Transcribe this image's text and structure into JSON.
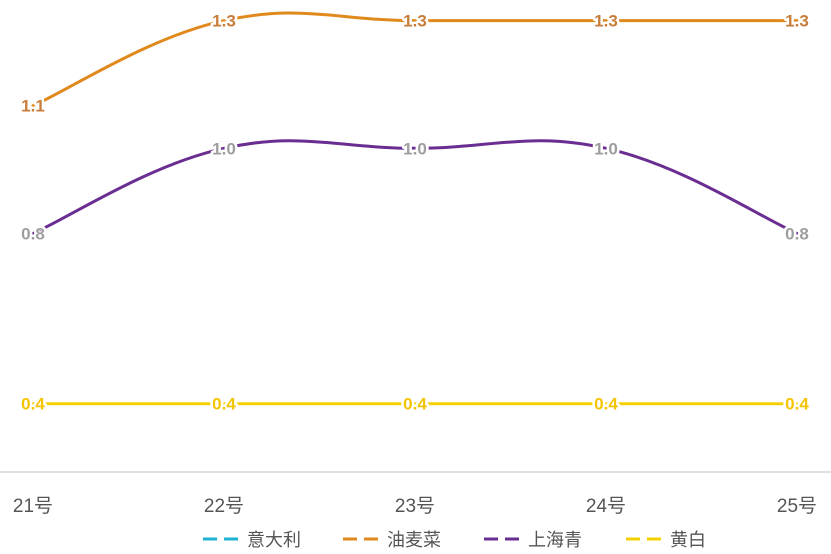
{
  "chart_data": {
    "type": "line",
    "title": "",
    "xlabel": "",
    "ylabel": "",
    "categories": [
      "21号",
      "22号",
      "23号",
      "24号",
      "25号"
    ],
    "ylim": [
      0,
      1.4
    ],
    "grid": false,
    "smooth": true,
    "legend_position": "bottom",
    "series": [
      {
        "name": "意大利",
        "color": "#1fb3d1",
        "values": [
          null,
          null,
          null,
          null,
          null
        ],
        "labels": [
          "",
          "",
          "",
          "",
          ""
        ]
      },
      {
        "name": "油麦菜",
        "color": "#e08a1e",
        "label_color": "#c87d3a",
        "values": [
          1.1,
          1.3,
          1.3,
          1.3,
          1.3
        ],
        "labels": [
          "1.1",
          "1.3",
          "1.3",
          "1.3",
          "1.3"
        ]
      },
      {
        "name": "上海青",
        "color": "#6a2d91",
        "label_color": "#9e9e9e",
        "values": [
          0.8,
          1.0,
          1.0,
          1.0,
          0.8
        ],
        "labels": [
          "0.8",
          "1.0",
          "1.0",
          "1.0",
          "0.8"
        ]
      },
      {
        "name": "黄白",
        "color": "#f5d000",
        "label_color": "#f5c400",
        "values": [
          0.4,
          0.4,
          0.4,
          0.4,
          0.4
        ],
        "labels": [
          "0.4",
          "0.4",
          "0.4",
          "0.4",
          "0.4"
        ]
      }
    ]
  }
}
